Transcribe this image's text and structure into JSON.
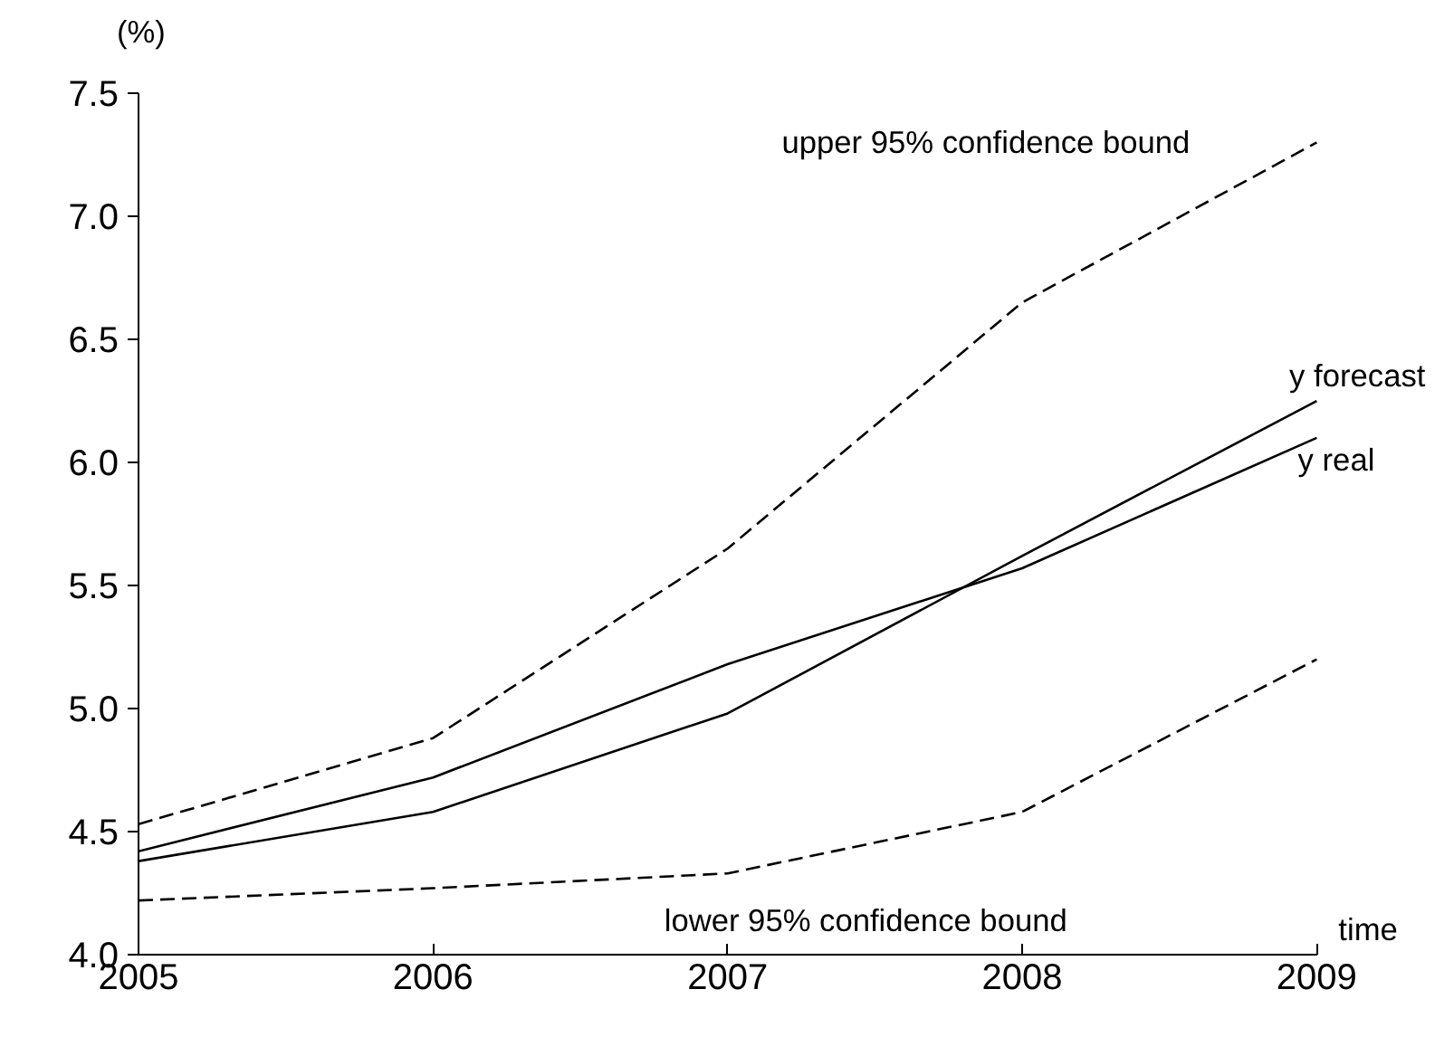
{
  "chart_data": {
    "type": "line",
    "ylabel": "(%)",
    "xlabel": "time",
    "x": [
      2005,
      2006,
      2007,
      2008,
      2009
    ],
    "series": [
      {
        "name": "upper 95% confidence bound",
        "color": "#000000",
        "line_style": "dashed",
        "values": [
          4.53,
          4.88,
          5.65,
          6.65,
          7.3
        ]
      },
      {
        "name": "y forecast",
        "color": "#000000",
        "line_style": "solid",
        "values": [
          4.38,
          4.58,
          4.98,
          5.62,
          6.25
        ]
      },
      {
        "name": "y real",
        "color": "#000000",
        "line_style": "solid",
        "values": [
          4.42,
          4.72,
          5.18,
          5.57,
          6.1
        ]
      },
      {
        "name": "lower 95% confidence bound",
        "color": "#000000",
        "line_style": "dashed",
        "values": [
          4.22,
          4.27,
          4.33,
          4.58,
          5.2
        ]
      }
    ],
    "xlim": [
      2005,
      2009
    ],
    "ylim": [
      4.0,
      7.5
    ],
    "xticks": [
      2005,
      2006,
      2007,
      2008,
      2009
    ],
    "yticks": [
      {
        "value": 4.0,
        "label": "4.0"
      },
      {
        "value": 4.5,
        "label": "4.5"
      },
      {
        "value": 5.0,
        "label": "5.0"
      },
      {
        "value": 5.5,
        "label": "5.5"
      },
      {
        "value": 6.0,
        "label": "6.0"
      },
      {
        "value": 6.5,
        "label": "6.5"
      },
      {
        "value": 7.0,
        "label": "7.0"
      },
      {
        "value": 7.5,
        "label": "7.5"
      }
    ],
    "grid": false,
    "marker": "none"
  }
}
